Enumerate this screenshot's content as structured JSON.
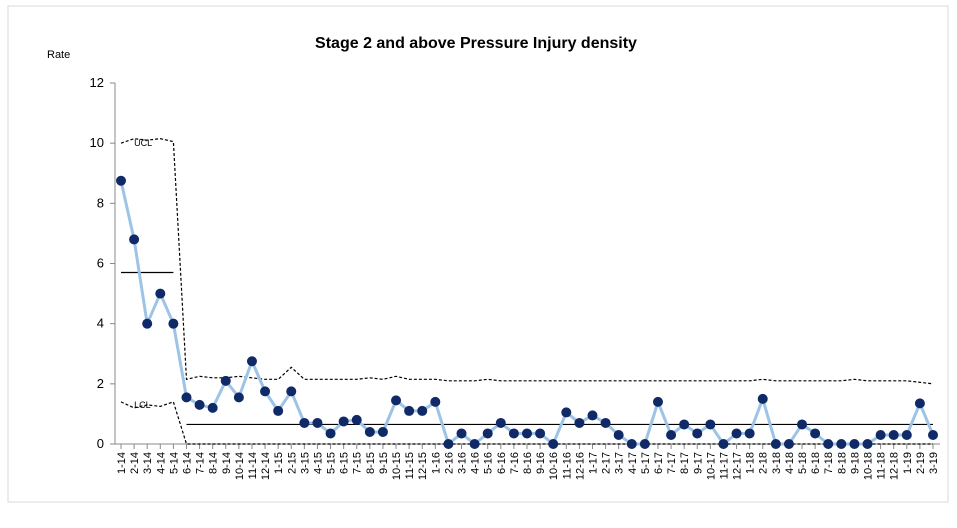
{
  "chart_data": {
    "type": "line",
    "title": "Stage 2 and above Pressure Injury density",
    "y_label": "Rate",
    "categories": [
      "1-14",
      "2-14",
      "3-14",
      "4-14",
      "5-14",
      "6-14",
      "7-14",
      "8-14",
      "9-14",
      "10-14",
      "11-14",
      "12-14",
      "1-15",
      "2-15",
      "3-15",
      "4-15",
      "5-15",
      "6-15",
      "7-15",
      "8-15",
      "9-15",
      "10-15",
      "11-15",
      "12-15",
      "1-16",
      "2-16",
      "3-16",
      "4-16",
      "5-16",
      "6-16",
      "7-16",
      "8-16",
      "9-16",
      "10-16",
      "11-16",
      "12-16",
      "1-17",
      "2-17",
      "3-17",
      "4-17",
      "5-17",
      "6-17",
      "7-17",
      "8-17",
      "9-17",
      "10-17",
      "11-17",
      "12-17",
      "1-18",
      "2-18",
      "3-18",
      "4-18",
      "5-18",
      "6-18",
      "7-18",
      "8-18",
      "9-18",
      "10-18",
      "11-18",
      "12-18",
      "1-19",
      "2-19",
      "3-19"
    ],
    "values": [
      8.75,
      6.8,
      4.0,
      5.0,
      4.0,
      1.55,
      1.3,
      1.2,
      2.1,
      1.55,
      2.75,
      1.75,
      1.1,
      1.75,
      0.7,
      0.7,
      0.35,
      0.75,
      0.8,
      0.4,
      0.4,
      1.45,
      1.1,
      1.1,
      1.4,
      0,
      0.35,
      0,
      0.35,
      0.7,
      0.35,
      0.35,
      0.35,
      0,
      1.05,
      0.7,
      0.95,
      0.7,
      0.3,
      0,
      0,
      1.4,
      0.3,
      0.65,
      0.35,
      0.65,
      0,
      0.35,
      0.35,
      1.5,
      0,
      0,
      0.65,
      0.35,
      0,
      0,
      0,
      0,
      0.3,
      0.3,
      0.3,
      1.35,
      0.3
    ],
    "ucl": [
      10.0,
      10.15,
      10.1,
      10.15,
      10.05,
      2.15,
      2.25,
      2.2,
      2.2,
      2.25,
      2.2,
      2.15,
      2.15,
      2.55,
      2.15,
      2.15,
      2.15,
      2.15,
      2.15,
      2.2,
      2.15,
      2.25,
      2.15,
      2.15,
      2.15,
      2.1,
      2.1,
      2.1,
      2.15,
      2.1,
      2.1,
      2.1,
      2.1,
      2.1,
      2.1,
      2.1,
      2.1,
      2.1,
      2.1,
      2.1,
      2.1,
      2.1,
      2.1,
      2.1,
      2.1,
      2.1,
      2.1,
      2.1,
      2.1,
      2.15,
      2.1,
      2.1,
      2.1,
      2.1,
      2.1,
      2.1,
      2.15,
      2.1,
      2.1,
      2.1,
      2.1,
      2.05,
      2.0
    ],
    "lcl": [
      1.4,
      1.2,
      1.3,
      1.25,
      1.4,
      0,
      0,
      0,
      0,
      0,
      0,
      0,
      0,
      0,
      0,
      0,
      0,
      0,
      0,
      0,
      0,
      0,
      0,
      0,
      0,
      0,
      0,
      0,
      0,
      0,
      0,
      0,
      0,
      0,
      0,
      0,
      0,
      0,
      0,
      0,
      0,
      0,
      0,
      0,
      0,
      0,
      0,
      0,
      0,
      0,
      0,
      0,
      0,
      0,
      0,
      0,
      0,
      0,
      0,
      0,
      0,
      0,
      0
    ],
    "center": [
      5.7,
      5.7,
      5.7,
      5.7,
      5.7,
      0.65,
      0.65,
      0.65,
      0.65,
      0.65,
      0.65,
      0.65,
      0.65,
      0.65,
      0.65,
      0.65,
      0.65,
      0.65,
      0.65,
      0.65,
      0.65,
      0.65,
      0.65,
      0.65,
      0.65,
      0.65,
      0.65,
      0.65,
      0.65,
      0.65,
      0.65,
      0.65,
      0.65,
      0.65,
      0.65,
      0.65,
      0.65,
      0.65,
      0.65,
      0.65,
      0.65,
      0.65,
      0.65,
      0.65,
      0.65,
      0.65,
      0.65,
      0.65,
      0.65,
      0.65,
      0.65,
      0.65,
      0.65,
      0.65,
      0.65,
      0.65,
      0.65,
      0.65,
      0.65,
      0.65,
      0.65,
      0.65,
      0.65
    ],
    "annotations": [
      {
        "text": "UCL",
        "x": 1,
        "y": 10.0
      },
      {
        "text": "LCL",
        "x": 1,
        "y": 1.3
      }
    ],
    "line_color": "#9dc3e6",
    "marker_color": "#0f2a66",
    "limit_color": "#000000",
    "ylim": [
      0,
      12
    ],
    "yticks": [
      0,
      2,
      4,
      6,
      8,
      10,
      12
    ]
  }
}
